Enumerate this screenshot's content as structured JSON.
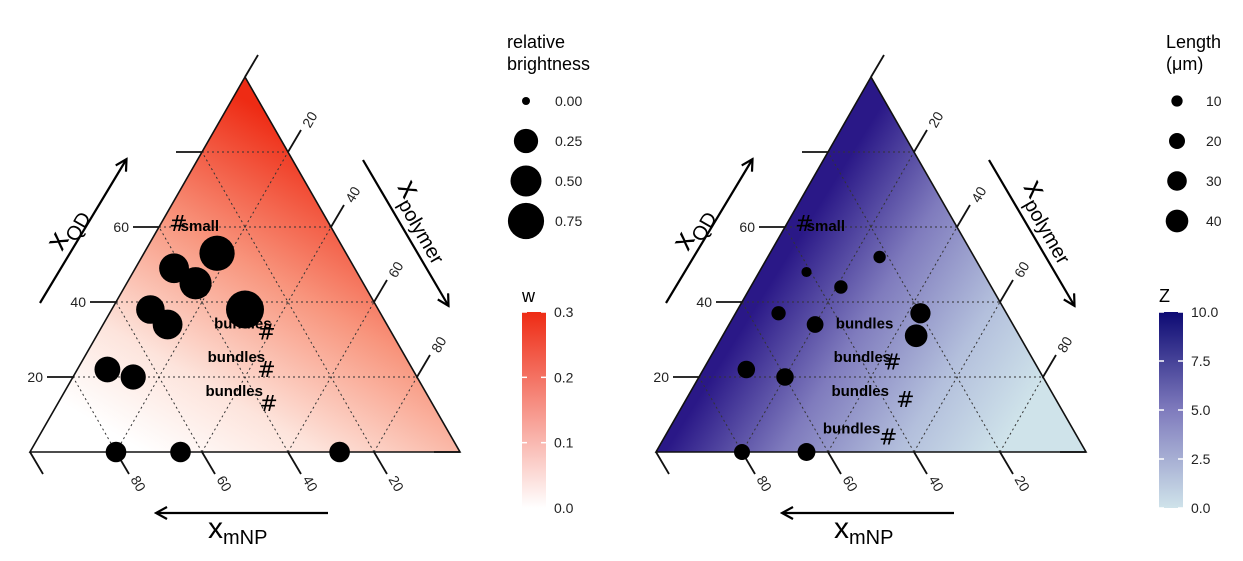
{
  "chart_data": [
    {
      "type": "scatter",
      "subtype": "ternary",
      "axes": {
        "qd": {
          "label_main": "x",
          "label_sub": "QD",
          "ticks": [
            "20",
            "40",
            "60"
          ]
        },
        "polymer": {
          "label_main": "x",
          "label_sub": "polymer",
          "ticks": [
            "20",
            "40",
            "60",
            "80"
          ]
        },
        "mnp": {
          "label_main": "x",
          "label_sub": "mNP",
          "ticks": [
            "20",
            "40",
            "60",
            "80"
          ]
        }
      },
      "grid": true,
      "fill": {
        "variable": "w",
        "low_color": "#ffffff",
        "high_color": "#ee2b14",
        "direction": "increases toward polymer and QD vertices"
      },
      "points": [
        {
          "qd": 53,
          "polymer": 17,
          "size": 0.7
        },
        {
          "qd": 49,
          "polymer": 9,
          "size": 0.45
        },
        {
          "qd": 45,
          "polymer": 16,
          "size": 0.55
        },
        {
          "qd": 38,
          "polymer": 9,
          "size": 0.4
        },
        {
          "qd": 34,
          "polymer": 15,
          "size": 0.45
        },
        {
          "qd": 38,
          "polymer": 31,
          "size": 0.85
        },
        {
          "qd": 22,
          "polymer": 7,
          "size": 0.3
        },
        {
          "qd": 20,
          "polymer": 14,
          "size": 0.28
        },
        {
          "qd": 0,
          "polymer": 20,
          "size": 0.15
        },
        {
          "qd": 0,
          "polymer": 35,
          "size": 0.15
        },
        {
          "qd": 0,
          "polymer": 72,
          "size": 0.15
        }
      ],
      "annotations": [
        {
          "text": "#",
          "qd": 59,
          "polymer": 5,
          "kind": "hash"
        },
        {
          "text": "small",
          "qd": 59,
          "polymer": 10,
          "kind": "text"
        },
        {
          "text": "bundles",
          "qd": 33,
          "polymer": 33,
          "kind": "text"
        },
        {
          "text": "#",
          "qd": 30,
          "polymer": 40,
          "kind": "hash"
        },
        {
          "text": "bundles",
          "qd": 24,
          "polymer": 36,
          "kind": "text"
        },
        {
          "text": "#",
          "qd": 20,
          "polymer": 45,
          "kind": "hash"
        },
        {
          "text": "bundles",
          "qd": 15,
          "polymer": 40,
          "kind": "text"
        },
        {
          "text": "#",
          "qd": 11,
          "polymer": 50,
          "kind": "hash"
        }
      ],
      "size_legend": {
        "title": [
          "relative",
          "brightness"
        ],
        "entries": [
          {
            "label": "0.00",
            "size": 0.0
          },
          {
            "label": "0.25",
            "size": 0.25
          },
          {
            "label": "0.50",
            "size": 0.5
          },
          {
            "label": "0.75",
            "size": 0.75
          }
        ]
      },
      "color_legend": {
        "title": "w",
        "labels": [
          "0.3",
          "0.2",
          "0.1",
          "0.0"
        ],
        "range": [
          0,
          0.3
        ]
      }
    },
    {
      "type": "scatter",
      "subtype": "ternary",
      "axes": {
        "qd": {
          "label_main": "x",
          "label_sub": "QD",
          "ticks": [
            "20",
            "40",
            "60"
          ]
        },
        "polymer": {
          "label_main": "x",
          "label_sub": "polymer",
          "ticks": [
            "20",
            "40",
            "60",
            "80"
          ]
        },
        "mnp": {
          "label_main": "x",
          "label_sub": "mNP",
          "ticks": [
            "20",
            "40",
            "60",
            "80"
          ]
        }
      },
      "grid": true,
      "fill": {
        "variable": "Z",
        "low_color": "#cfe3ea",
        "high_color": "#2a1887",
        "direction": "increases toward mNP edge"
      },
      "points": [
        {
          "qd": 52,
          "polymer": 26,
          "size": 12
        },
        {
          "qd": 48,
          "polymer": 11,
          "size": 8
        },
        {
          "qd": 44,
          "polymer": 21,
          "size": 14
        },
        {
          "qd": 37,
          "polymer": 10,
          "size": 16
        },
        {
          "qd": 34,
          "polymer": 20,
          "size": 22
        },
        {
          "qd": 37,
          "polymer": 43,
          "size": 32
        },
        {
          "qd": 31,
          "polymer": 45,
          "size": 40
        },
        {
          "qd": 22,
          "polymer": 10,
          "size": 24
        },
        {
          "qd": 20,
          "polymer": 20,
          "size": 24
        },
        {
          "qd": 0,
          "polymer": 20,
          "size": 20
        },
        {
          "qd": 0,
          "polymer": 35,
          "size": 25
        }
      ],
      "annotations": [
        {
          "text": "#",
          "qd": 59,
          "polymer": 5,
          "kind": "hash"
        },
        {
          "text": "small",
          "qd": 59,
          "polymer": 10,
          "kind": "text"
        },
        {
          "text": "bundles",
          "qd": 33,
          "polymer": 32,
          "kind": "text"
        },
        {
          "text": "#",
          "qd": 22,
          "polymer": 44,
          "kind": "hash"
        },
        {
          "text": "bundles",
          "qd": 24,
          "polymer": 36,
          "kind": "text"
        },
        {
          "text": "#",
          "qd": 12,
          "polymer": 52,
          "kind": "hash"
        },
        {
          "text": "bundles",
          "qd": 15,
          "polymer": 40,
          "kind": "text"
        },
        {
          "text": "bundles",
          "qd": 5,
          "polymer": 43,
          "kind": "text"
        },
        {
          "text": "#",
          "qd": 2,
          "polymer": 53,
          "kind": "hash"
        }
      ],
      "size_legend": {
        "title": [
          "Length",
          "(μm)"
        ],
        "entries": [
          {
            "label": "10",
            "size": 10
          },
          {
            "label": "20",
            "size": 20
          },
          {
            "label": "30",
            "size": 30
          },
          {
            "label": "40",
            "size": 40
          }
        ]
      },
      "color_legend": {
        "title": "Z",
        "labels": [
          "10.0",
          "7.5",
          "5.0",
          "2.5",
          "0.0"
        ],
        "range": [
          0,
          10
        ]
      }
    }
  ]
}
